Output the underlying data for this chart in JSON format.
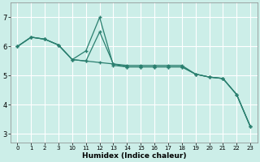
{
  "xlabel": "Humidex (Indice chaleur)",
  "background_color": "#cceee8",
  "grid_color": "#ffffff",
  "line_color": "#2a7f6f",
  "ylim": [
    2.7,
    7.5
  ],
  "yticks": [
    3,
    4,
    5,
    6,
    7
  ],
  "xtick_labels": [
    "0",
    "1",
    "2",
    "3",
    "10",
    "11",
    "12",
    "13",
    "14",
    "15",
    "16",
    "17",
    "18",
    "19",
    "20",
    "21",
    "22",
    "23"
  ],
  "line_spike_x": [
    0,
    1,
    2,
    3,
    4,
    5,
    6,
    7,
    8,
    9,
    10,
    11,
    12,
    13,
    14,
    15,
    16,
    17
  ],
  "line_spike_y": [
    6.0,
    6.32,
    6.25,
    6.05,
    5.55,
    5.85,
    7.0,
    5.35,
    5.3,
    5.3,
    5.3,
    5.3,
    5.3,
    5.05,
    4.95,
    4.9,
    4.35,
    3.25
  ],
  "line_mid_x": [
    0,
    1,
    2,
    3,
    4,
    5,
    6,
    7,
    8,
    9,
    10,
    11,
    12,
    13,
    14,
    15,
    16,
    17
  ],
  "line_mid_y": [
    6.0,
    6.32,
    6.25,
    6.05,
    5.55,
    5.5,
    6.5,
    5.4,
    5.3,
    5.3,
    5.3,
    5.3,
    5.3,
    5.05,
    4.95,
    4.9,
    4.35,
    3.25
  ],
  "line_flat_x": [
    0,
    1,
    2,
    3,
    4,
    5,
    6,
    7,
    8,
    9,
    10,
    11,
    12,
    13,
    14,
    15,
    16,
    17
  ],
  "line_flat_y": [
    6.0,
    6.32,
    6.25,
    6.05,
    5.55,
    5.5,
    5.45,
    5.4,
    5.35,
    5.35,
    5.35,
    5.35,
    5.35,
    5.05,
    4.95,
    4.9,
    4.35,
    3.25
  ]
}
